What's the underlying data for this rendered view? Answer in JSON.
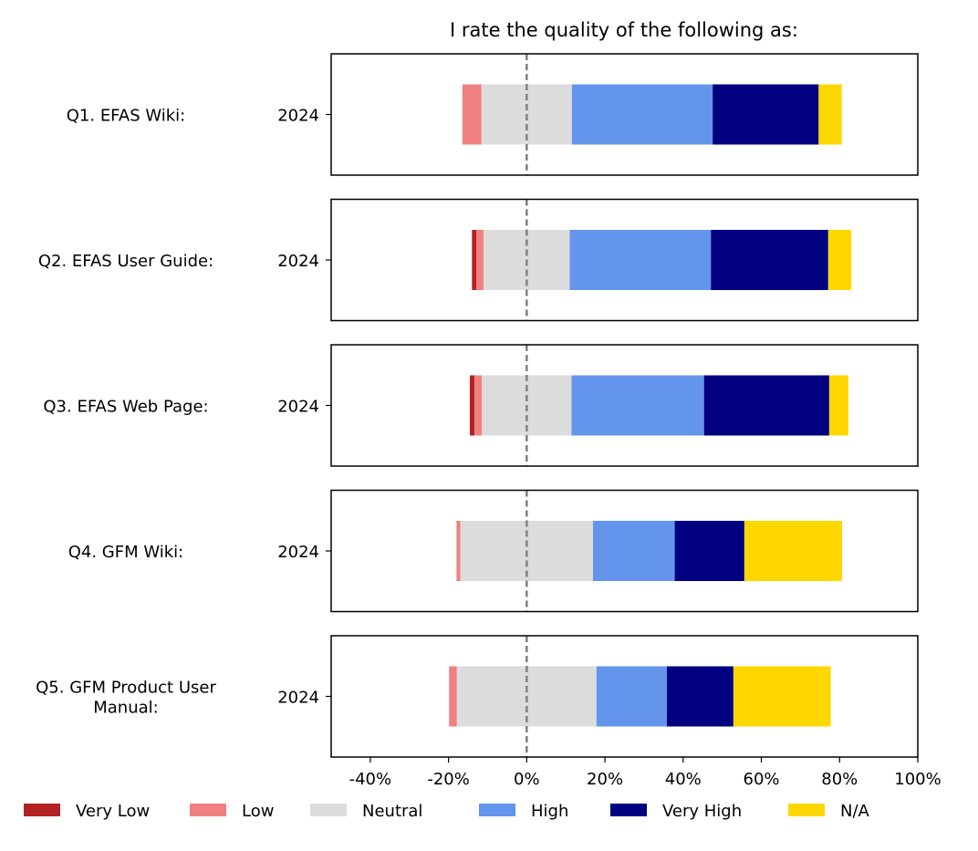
{
  "chart_data": {
    "type": "bar",
    "orientation": "horizontal",
    "stacked": "diverging",
    "title": "I rate the quality of the following as:",
    "xlabel": "",
    "ylabel": "",
    "xlim": [
      -50,
      100
    ],
    "x_ticks": [
      -40,
      -20,
      0,
      20,
      40,
      60,
      80,
      100
    ],
    "x_tick_labels": [
      "-40%",
      "-20%",
      "0%",
      "20%",
      "40%",
      "60%",
      "80%",
      "100%"
    ],
    "zero_line": "dashed",
    "grid": false,
    "legend_position": "bottom",
    "categories_order": [
      "Very Low",
      "Low",
      "Neutral",
      "High",
      "Very High",
      "N/A"
    ],
    "legend": [
      {
        "name": "Very Low",
        "color": "#b22222"
      },
      {
        "name": "Low",
        "color": "#f08080"
      },
      {
        "name": "Neutral",
        "color": "#dcdcdc"
      },
      {
        "name": "High",
        "color": "#6495ed"
      },
      {
        "name": "Very High",
        "color": "#000080"
      },
      {
        "name": "N/A",
        "color": "#ffd700"
      }
    ],
    "panels": [
      {
        "question": "Q1. EFAS Wiki:",
        "year": "2024",
        "values": {
          "Very Low": 0.0,
          "Low": 4.9,
          "Neutral": 23.1,
          "High": 36.0,
          "Very High": 27.1,
          "N/A": 5.9
        }
      },
      {
        "question": "Q2. EFAS User Guide:",
        "year": "2024",
        "values": {
          "Very Low": 1.1,
          "Low": 1.9,
          "Neutral": 22.0,
          "High": 36.1,
          "Very High": 30.0,
          "N/A": 5.9
        }
      },
      {
        "question": "Q3. EFAS Web Page:",
        "year": "2024",
        "values": {
          "Very Low": 1.2,
          "Low": 1.9,
          "Neutral": 22.9,
          "High": 33.9,
          "Very High": 32.0,
          "N/A": 4.9
        }
      },
      {
        "question": "Q4. GFM Wiki:",
        "year": "2024",
        "values": {
          "Very Low": 0.0,
          "Low": 1.0,
          "Neutral": 33.9,
          "High": 20.9,
          "Very High": 17.8,
          "N/A": 25.0
        }
      },
      {
        "question": "Q5. GFM Product User Manual:",
        "question_lines": [
          "Q5. GFM Product User",
          "Manual:"
        ],
        "year": "2024",
        "values": {
          "Very Low": 0.0,
          "Low": 2.0,
          "Neutral": 35.7,
          "High": 18.0,
          "Very High": 17.0,
          "N/A": 24.9
        }
      }
    ]
  }
}
